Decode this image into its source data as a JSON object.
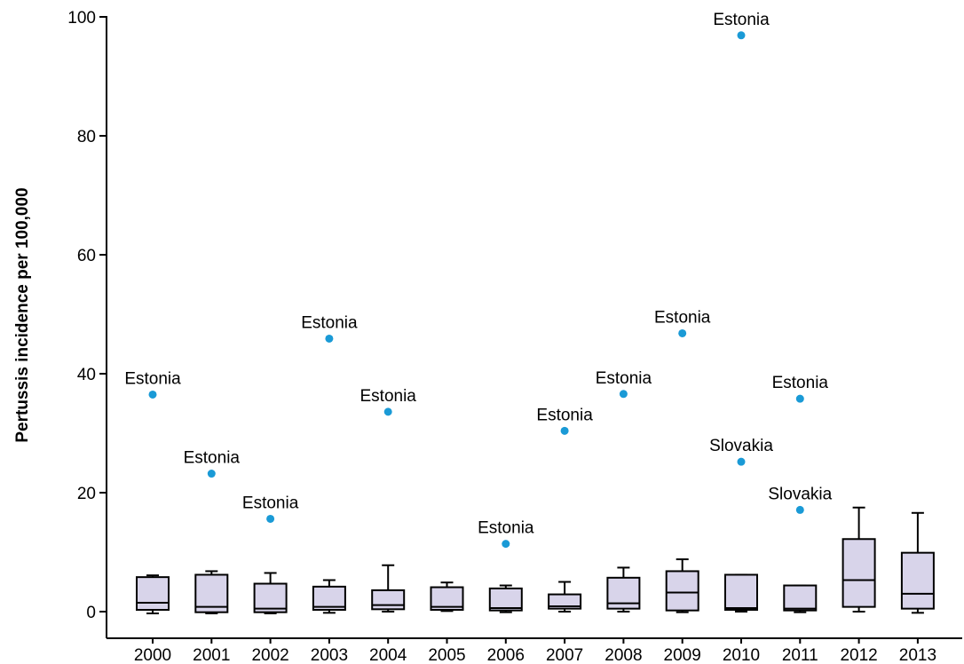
{
  "chart_data": {
    "type": "box",
    "title": "",
    "xlabel": "",
    "ylabel": "Pertussis incidence per 100,000",
    "ylim": [
      0,
      100
    ],
    "yticks": [
      0,
      20,
      40,
      60,
      80,
      100
    ],
    "grid": false,
    "colors": {
      "box_fill": "#d8d4ea",
      "box_stroke": "#000000",
      "outlier": "#1a9ad6",
      "axis": "#000000"
    },
    "categories": [
      "2000",
      "2001",
      "2002",
      "2003",
      "2004",
      "2005",
      "2006",
      "2007",
      "2008",
      "2009",
      "2010",
      "2011",
      "2012",
      "2013"
    ],
    "boxes": [
      {
        "year": "2000",
        "min": -0.3,
        "q1": 0.3,
        "median": 1.5,
        "q3": 5.8,
        "max": 6.1
      },
      {
        "year": "2001",
        "min": -0.3,
        "q1": -0.1,
        "median": 0.8,
        "q3": 6.2,
        "max": 6.8
      },
      {
        "year": "2002",
        "min": -0.3,
        "q1": -0.1,
        "median": 0.5,
        "q3": 4.7,
        "max": 6.5
      },
      {
        "year": "2003",
        "min": -0.2,
        "q1": 0.3,
        "median": 0.8,
        "q3": 4.2,
        "max": 5.3
      },
      {
        "year": "2004",
        "min": 0.0,
        "q1": 0.4,
        "median": 1.1,
        "q3": 3.6,
        "max": 7.8
      },
      {
        "year": "2005",
        "min": 0.1,
        "q1": 0.3,
        "median": 0.8,
        "q3": 4.1,
        "max": 4.9
      },
      {
        "year": "2006",
        "min": -0.1,
        "q1": 0.2,
        "median": 0.6,
        "q3": 3.9,
        "max": 4.4
      },
      {
        "year": "2007",
        "min": 0.0,
        "q1": 0.5,
        "median": 0.9,
        "q3": 2.9,
        "max": 5.0
      },
      {
        "year": "2008",
        "min": 0.0,
        "q1": 0.5,
        "median": 1.4,
        "q3": 5.7,
        "max": 7.4
      },
      {
        "year": "2009",
        "min": -0.1,
        "q1": 0.2,
        "median": 3.2,
        "q3": 6.8,
        "max": 8.8
      },
      {
        "year": "2010",
        "min": 0.0,
        "q1": 0.3,
        "median": 0.6,
        "q3": 6.2,
        "max": 6.2
      },
      {
        "year": "2011",
        "min": -0.1,
        "q1": 0.2,
        "median": 0.5,
        "q3": 4.4,
        "max": 4.4
      },
      {
        "year": "2012",
        "min": 0.0,
        "q1": 0.8,
        "median": 5.3,
        "q3": 12.2,
        "max": 17.5
      },
      {
        "year": "2013",
        "min": -0.2,
        "q1": 0.5,
        "median": 3.0,
        "q3": 9.9,
        "max": 16.6
      }
    ],
    "outliers": [
      {
        "year": "2000",
        "value": 36.5,
        "label": "Estonia"
      },
      {
        "year": "2001",
        "value": 23.2,
        "label": "Estonia"
      },
      {
        "year": "2002",
        "value": 15.6,
        "label": "Estonia"
      },
      {
        "year": "2003",
        "value": 45.9,
        "label": "Estonia"
      },
      {
        "year": "2004",
        "value": 33.6,
        "label": "Estonia"
      },
      {
        "year": "2006",
        "value": 11.4,
        "label": "Estonia"
      },
      {
        "year": "2007",
        "value": 30.4,
        "label": "Estonia"
      },
      {
        "year": "2008",
        "value": 36.6,
        "label": "Estonia"
      },
      {
        "year": "2009",
        "value": 46.8,
        "label": "Estonia"
      },
      {
        "year": "2010",
        "value": 96.9,
        "label": "Estonia"
      },
      {
        "year": "2010",
        "value": 25.2,
        "label": "Slovakia"
      },
      {
        "year": "2011",
        "value": 35.8,
        "label": "Estonia"
      },
      {
        "year": "2011",
        "value": 17.1,
        "label": "Slovakia"
      }
    ]
  }
}
